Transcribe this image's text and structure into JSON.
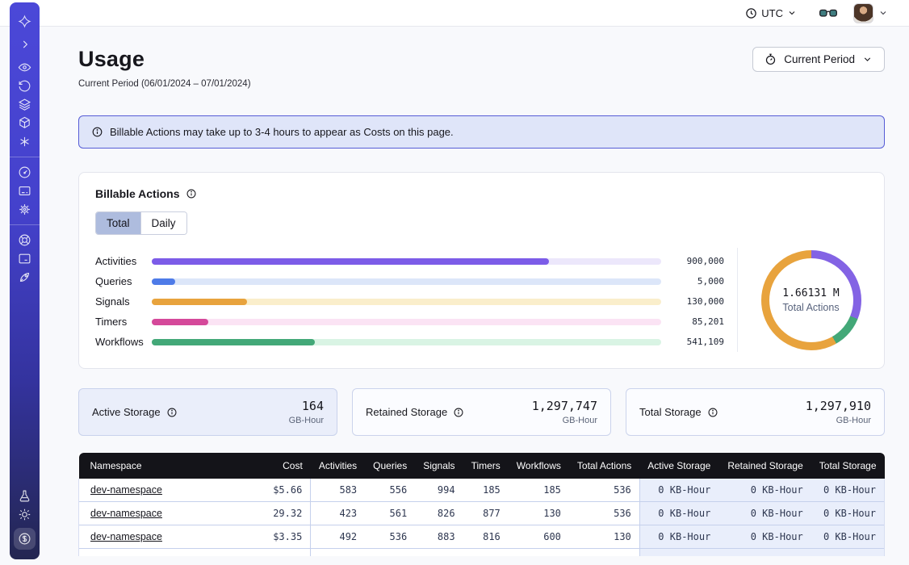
{
  "topbar": {
    "timezone": "UTC",
    "icons": [
      "clock-icon",
      "chevron-down-icon",
      "glasses-icon",
      "avatar",
      "chevron-down-icon"
    ]
  },
  "sidebar": {
    "icons": [
      "temporal-logo-icon",
      "chevron-right-icon",
      "eye-icon",
      "history-icon",
      "layers-icon",
      "cube-icon",
      "asterisk-icon",
      "gauge-icon",
      "card-icon",
      "gear-icon",
      "lifebuoy-icon",
      "terminal-icon",
      "rocket-icon",
      "flask-icon",
      "sun-icon",
      "dollar-icon"
    ],
    "active_item": "dollar-icon"
  },
  "page": {
    "title": "Usage",
    "subtitle": "Current Period (06/01/2024 – 07/01/2024)",
    "period_button": "Current Period",
    "banner": "Billable Actions may take up to 3-4 hours to appear as Costs on this page."
  },
  "billable": {
    "title": "Billable Actions",
    "tabs": [
      {
        "label": "Total",
        "active": true
      },
      {
        "label": "Daily",
        "active": false
      }
    ]
  },
  "chart_data": [
    {
      "type": "bar",
      "orientation": "horizontal",
      "categories": [
        "Activities",
        "Queries",
        "Signals",
        "Timers",
        "Workflows"
      ],
      "values": [
        900000,
        5000,
        130000,
        85201,
        541109
      ],
      "value_labels": [
        "900,000",
        "5,000",
        "130,000",
        "85,201",
        "541,109"
      ],
      "colors": [
        "#7c5ce8",
        "#4e7be8",
        "#e8a33d",
        "#d5499a",
        "#43a878"
      ],
      "track_colors": [
        "#ece7fb",
        "#dce6f9",
        "#faeecb",
        "#fbe3f4",
        "#d9f4e4"
      ],
      "fill_pct": [
        78,
        4.6,
        18.7,
        11.1,
        32
      ],
      "title": "Billable Actions (Total)",
      "grid": false,
      "legend": false
    },
    {
      "type": "donut",
      "center_value": "1.66131 M",
      "center_label": "Total Actions",
      "segments": [
        {
          "name": "purple",
          "color": "#8363e4",
          "sweep_deg": 112
        },
        {
          "name": "green",
          "color": "#43a878",
          "sweep_deg": 38
        },
        {
          "name": "orange",
          "color": "#e8a33d",
          "sweep_deg": 210
        }
      ]
    }
  ],
  "storage_cards": [
    {
      "label": "Active Storage",
      "value": "164",
      "unit": "GB-Hour"
    },
    {
      "label": "Retained Storage",
      "value": "1,297,747",
      "unit": "GB-Hour"
    },
    {
      "label": "Total Storage",
      "value": "1,297,910",
      "unit": "GB-Hour"
    }
  ],
  "table": {
    "columns": [
      "Namespace",
      "Cost",
      "Activities",
      "Queries",
      "Signals",
      "Timers",
      "Workflows",
      "Total Actions",
      "Active Storage",
      "Retained Storage",
      "Total Storage"
    ],
    "rows": [
      {
        "namespace": "dev-namespace",
        "cost": "$5.66",
        "activities": "583",
        "queries": "556",
        "signals": "994",
        "timers": "185",
        "workflows": "185",
        "total_actions": "536",
        "active_storage": "0 KB-Hour",
        "retained_storage": "0 KB-Hour",
        "total_storage": "0 KB-Hour"
      },
      {
        "namespace": "dev-namespace",
        "cost": "29.32",
        "activities": "423",
        "queries": "561",
        "signals": "826",
        "timers": "877",
        "workflows": "130",
        "total_actions": "536",
        "active_storage": "0 KB-Hour",
        "retained_storage": "0 KB-Hour",
        "total_storage": "0 KB-Hour"
      },
      {
        "namespace": "dev-namespace",
        "cost": "$3.35",
        "activities": "492",
        "queries": "536",
        "signals": "883",
        "timers": "816",
        "workflows": "600",
        "total_actions": "130",
        "active_storage": "0 KB-Hour",
        "retained_storage": "0 KB-Hour",
        "total_storage": "0 KB-Hour"
      }
    ]
  },
  "colors": {
    "sidebar_top": "#4b48d8",
    "sidebar_bottom": "#232651",
    "banner_bg": "#dfe5f9",
    "banner_border": "#565cd6",
    "tab_active_bg": "#aebcde",
    "table_header_bg": "#141419",
    "storage_cell_bg": "#e9eefb"
  }
}
